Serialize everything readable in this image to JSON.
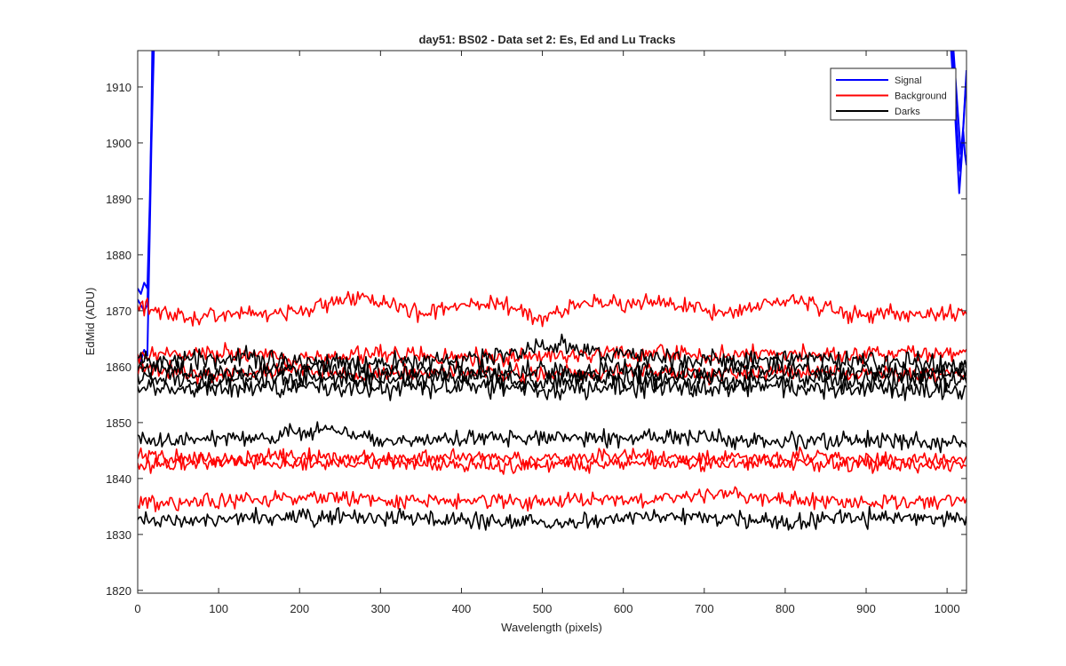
{
  "chart_data": {
    "type": "line",
    "title": "day51: BS02 - Data set 2: Es, Ed and Lu Tracks",
    "xlabel": "Wavelength (pixels)",
    "ylabel": "EdMid (ADU)",
    "xlim": [
      0,
      1024
    ],
    "ylim": [
      1819.5,
      1916.5
    ],
    "xticks": [
      0,
      100,
      200,
      300,
      400,
      500,
      600,
      700,
      800,
      900,
      1000
    ],
    "yticks": [
      1820,
      1830,
      1840,
      1850,
      1860,
      1870,
      1880,
      1890,
      1900,
      1910
    ],
    "grid": false,
    "legend_position": "top-right",
    "legend": [
      {
        "label": "Signal",
        "color": "#0000ff"
      },
      {
        "label": "Background",
        "color": "#ff0000"
      },
      {
        "label": "Darks",
        "color": "#000000"
      }
    ],
    "series": [
      {
        "group": "Signal",
        "color": "#0000ff",
        "note": "rises steeply off-scale at low pixels",
        "x": [
          0,
          4,
          8,
          12,
          15,
          17,
          18
        ],
        "y": [
          1874,
          1873,
          1875,
          1874,
          1890,
          1905,
          1916.5
        ]
      },
      {
        "group": "Signal",
        "color": "#0000ff",
        "x": [
          0,
          4,
          8,
          12,
          15,
          17,
          19
        ],
        "y": [
          1872,
          1871,
          1870,
          1871,
          1888,
          1903,
          1916.5
        ]
      },
      {
        "group": "Signal",
        "color": "#0000ff",
        "x": [
          0,
          4,
          8,
          12,
          15,
          17,
          20
        ],
        "y": [
          1862,
          1861,
          1863,
          1862,
          1885,
          1900,
          1916.5
        ]
      },
      {
        "group": "Signal",
        "color": "#0000ff",
        "note": "returns into view at high pixels",
        "x": [
          1005,
          1010,
          1015,
          1018,
          1020,
          1022,
          1024
        ],
        "y": [
          1916.5,
          1905,
          1891,
          1897,
          1902,
          1898,
          1896
        ]
      },
      {
        "group": "Signal",
        "color": "#0000ff",
        "x": [
          1007,
          1012,
          1016,
          1019,
          1021,
          1023,
          1024
        ],
        "y": [
          1916.5,
          1903,
          1895,
          1900,
          1905,
          1910,
          1912
        ]
      },
      {
        "group": "Signal",
        "color": "#0000ff",
        "x": [
          1008,
          1013,
          1017,
          1020,
          1022,
          1024
        ],
        "y": [
          1916.5,
          1906,
          1898,
          1903,
          1908,
          1913
        ]
      },
      {
        "group": "Background",
        "color": "#ff0000",
        "mean": [
          [
            0,
            1871
          ],
          [
            50,
            1868.5
          ],
          [
            100,
            1869.5
          ],
          [
            200,
            1870
          ],
          [
            275,
            1872.5
          ],
          [
            350,
            1869.5
          ],
          [
            440,
            1871.5
          ],
          [
            500,
            1868.5
          ],
          [
            550,
            1871.5
          ],
          [
            650,
            1871.5
          ],
          [
            720,
            1869.5
          ],
          [
            810,
            1872
          ],
          [
            880,
            1869.5
          ],
          [
            1024,
            1869.5
          ]
        ],
        "noise": 1.0
      },
      {
        "group": "Background",
        "color": "#ff0000",
        "mean": [
          [
            0,
            1861.5
          ],
          [
            100,
            1862.5
          ],
          [
            200,
            1861.5
          ],
          [
            300,
            1862.5
          ],
          [
            400,
            1861.5
          ],
          [
            500,
            1862
          ],
          [
            600,
            1862.5
          ],
          [
            700,
            1862
          ],
          [
            800,
            1862.5
          ],
          [
            900,
            1862
          ],
          [
            1024,
            1862.5
          ]
        ],
        "noise": 1.0
      },
      {
        "group": "Background",
        "color": "#ff0000",
        "mean": [
          [
            0,
            1859.5
          ],
          [
            100,
            1858.5
          ],
          [
            200,
            1859.5
          ],
          [
            300,
            1858.5
          ],
          [
            400,
            1859
          ],
          [
            500,
            1858.5
          ],
          [
            600,
            1859.5
          ],
          [
            700,
            1858.5
          ],
          [
            800,
            1859
          ],
          [
            900,
            1858.5
          ],
          [
            1024,
            1858.5
          ]
        ],
        "noise": 1.0
      },
      {
        "group": "Background",
        "color": "#ff0000",
        "mean": [
          [
            0,
            1844
          ],
          [
            100,
            1843.5
          ],
          [
            200,
            1844
          ],
          [
            300,
            1843.5
          ],
          [
            400,
            1844
          ],
          [
            500,
            1843.5
          ],
          [
            600,
            1844
          ],
          [
            700,
            1843.5
          ],
          [
            800,
            1844
          ],
          [
            900,
            1843.5
          ],
          [
            1024,
            1843.5
          ]
        ],
        "noise": 0.9
      },
      {
        "group": "Background",
        "color": "#ff0000",
        "mean": [
          [
            0,
            1842.5
          ],
          [
            100,
            1843
          ],
          [
            200,
            1842.5
          ],
          [
            300,
            1843
          ],
          [
            400,
            1842.5
          ],
          [
            500,
            1842.5
          ],
          [
            600,
            1843
          ],
          [
            700,
            1842.5
          ],
          [
            800,
            1843
          ],
          [
            900,
            1842.5
          ],
          [
            1024,
            1842.5
          ]
        ],
        "noise": 0.9
      },
      {
        "group": "Background",
        "color": "#ff0000",
        "mean": [
          [
            0,
            1835.5
          ],
          [
            200,
            1836.5
          ],
          [
            400,
            1836
          ],
          [
            600,
            1836
          ],
          [
            730,
            1837.5
          ],
          [
            800,
            1836
          ],
          [
            1024,
            1836
          ]
        ],
        "noise": 0.9
      },
      {
        "group": "Darks",
        "color": "#000000",
        "mean": [
          [
            0,
            1861
          ],
          [
            100,
            1861.5
          ],
          [
            200,
            1861
          ],
          [
            300,
            1860.5
          ],
          [
            400,
            1861
          ],
          [
            520,
            1863.5
          ],
          [
            600,
            1862
          ],
          [
            700,
            1861
          ],
          [
            800,
            1861.5
          ],
          [
            900,
            1861
          ],
          [
            1024,
            1860
          ]
        ],
        "noise": 1.2
      },
      {
        "group": "Darks",
        "color": "#000000",
        "mean": [
          [
            0,
            1859.5
          ],
          [
            100,
            1859
          ],
          [
            200,
            1859.5
          ],
          [
            300,
            1859
          ],
          [
            400,
            1859.5
          ],
          [
            500,
            1859
          ],
          [
            600,
            1859.5
          ],
          [
            700,
            1859
          ],
          [
            800,
            1859.5
          ],
          [
            900,
            1859
          ],
          [
            1024,
            1859
          ]
        ],
        "noise": 1.2
      },
      {
        "group": "Darks",
        "color": "#000000",
        "mean": [
          [
            0,
            1858
          ],
          [
            100,
            1857.5
          ],
          [
            200,
            1858
          ],
          [
            300,
            1857.5
          ],
          [
            400,
            1858
          ],
          [
            500,
            1857.5
          ],
          [
            600,
            1858
          ],
          [
            700,
            1857.5
          ],
          [
            800,
            1858
          ],
          [
            900,
            1857.5
          ],
          [
            1024,
            1857.5
          ]
        ],
        "noise": 1.2
      },
      {
        "group": "Darks",
        "color": "#000000",
        "mean": [
          [
            0,
            1856.5
          ],
          [
            100,
            1856
          ],
          [
            200,
            1856.5
          ],
          [
            300,
            1856
          ],
          [
            400,
            1856.5
          ],
          [
            500,
            1856
          ],
          [
            600,
            1856.5
          ],
          [
            700,
            1856
          ],
          [
            800,
            1856.5
          ],
          [
            900,
            1856
          ],
          [
            1024,
            1856
          ]
        ],
        "noise": 1.2
      },
      {
        "group": "Darks",
        "color": "#000000",
        "mean": [
          [
            0,
            1847
          ],
          [
            100,
            1847
          ],
          [
            230,
            1848.5
          ],
          [
            300,
            1847
          ],
          [
            400,
            1847
          ],
          [
            500,
            1847.5
          ],
          [
            600,
            1847
          ],
          [
            700,
            1847.5
          ],
          [
            800,
            1846.5
          ],
          [
            900,
            1847
          ],
          [
            1024,
            1846
          ]
        ],
        "noise": 1.0
      },
      {
        "group": "Darks",
        "color": "#000000",
        "mean": [
          [
            0,
            1832.5
          ],
          [
            100,
            1833
          ],
          [
            200,
            1833
          ],
          [
            300,
            1833
          ],
          [
            400,
            1832.5
          ],
          [
            500,
            1832
          ],
          [
            600,
            1833
          ],
          [
            700,
            1833
          ],
          [
            800,
            1832.5
          ],
          [
            900,
            1833
          ],
          [
            1024,
            1833
          ]
        ],
        "noise": 1.0
      }
    ]
  }
}
